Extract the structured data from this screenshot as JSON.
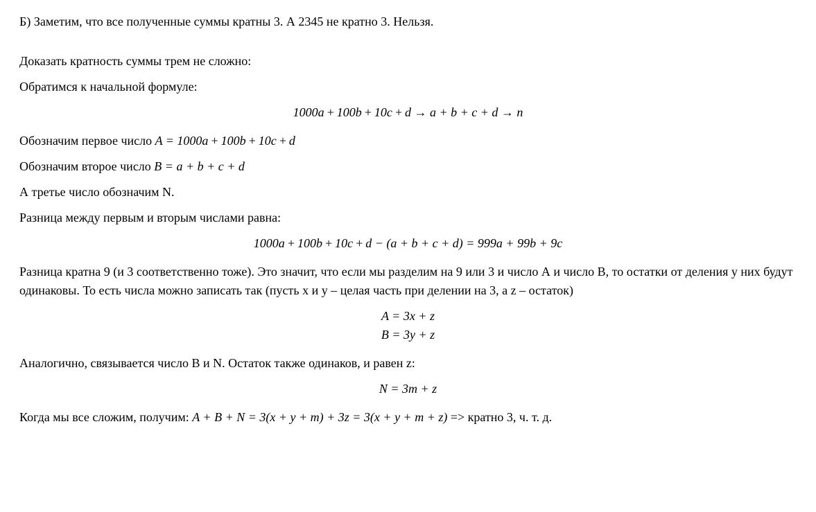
{
  "p1": "Б) Заметим, что все полученные суммы кратны 3. А 2345 не кратно 3. Нельзя.",
  "p2": "Доказать кратность суммы трем не сложно:",
  "p3": "Обратимся к начальной формуле:",
  "formula1": "1000a + 100b + 10c + d → a + b + c + d → n",
  "p4_prefix": "Обозначим первое число ",
  "p4_formula": "A = 1000a + 100b + 10c + d",
  "p5_prefix": "Обозначим второе число ",
  "p5_formula": "B = a + b + c + d",
  "p6": "А третье число обозначим N.",
  "p7": "Разница между первым и вторым числами равна:",
  "formula2": "1000a + 100b + 10c + d − (a + b + c + d) = 999a + 99b + 9c",
  "p8": "Разница кратна 9 (и 3 соответственно тоже). Это значит, что если мы разделим на 9 или 3 и число А и число В, то остатки от деления у них будут одинаковы. То есть числа можно записать так (пусть x и y – целая часть при делении на 3, а z – остаток)",
  "formula3a": "A = 3x + z",
  "formula3b": "B = 3y + z",
  "p9": "Аналогично, связывается число В и N. Остаток также одинаков, и равен z:",
  "formula4": "N = 3m + z",
  "p10_prefix": "Когда мы все сложим, получим: ",
  "p10_formula": "A + B + N = 3(x + y + m) + 3z = 3(x + y + m + z)",
  "p10_suffix": " => кратно 3, ч. т. д."
}
